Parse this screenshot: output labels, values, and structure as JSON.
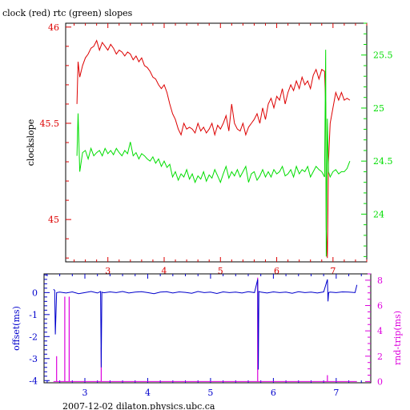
{
  "colors": {
    "red": "#dd0000",
    "green": "#00dd00",
    "blue": "#0000cc",
    "magenta": "#dd00dd",
    "axis": "#000000"
  },
  "chart_data": [
    {
      "type": "line",
      "title": "clock (red) rtc (green) slopes",
      "xlabel": "",
      "ylabel": "clockslope",
      "xlim": [
        2.25,
        7.6
      ],
      "ylim": [
        44.78,
        46.02
      ],
      "y2lim": [
        23.55,
        25.8
      ],
      "x_ticks": [
        "3",
        "4",
        "5",
        "6",
        "7"
      ],
      "y_ticks": [
        "45",
        "45.5",
        "46"
      ],
      "y2_ticks": [
        "24",
        "24.5",
        "25",
        "25.5"
      ],
      "grid": false,
      "series": [
        {
          "axis": "left",
          "color": "red",
          "x": [
            2.45,
            2.47,
            2.5,
            2.55,
            2.6,
            2.65,
            2.7,
            2.75,
            2.8,
            2.85,
            2.9,
            2.95,
            3.0,
            3.05,
            3.1,
            3.15,
            3.2,
            3.25,
            3.3,
            3.35,
            3.4,
            3.45,
            3.5,
            3.55,
            3.6,
            3.65,
            3.7,
            3.75,
            3.8,
            3.85,
            3.9,
            3.95,
            4.0,
            4.05,
            4.1,
            4.15,
            4.2,
            4.25,
            4.3,
            4.35,
            4.4,
            4.45,
            4.5,
            4.55,
            4.6,
            4.65,
            4.7,
            4.75,
            4.8,
            4.85,
            4.9,
            4.95,
            5.0,
            5.05,
            5.1,
            5.15,
            5.2,
            5.25,
            5.3,
            5.35,
            5.4,
            5.45,
            5.5,
            5.55,
            5.6,
            5.65,
            5.7,
            5.75,
            5.8,
            5.85,
            5.9,
            5.95,
            6.0,
            6.05,
            6.1,
            6.15,
            6.2,
            6.25,
            6.3,
            6.35,
            6.4,
            6.45,
            6.5,
            6.55,
            6.6,
            6.65,
            6.7,
            6.75,
            6.8,
            6.85,
            6.87,
            6.88,
            6.9,
            6.92,
            6.95,
            7.0,
            7.05,
            7.1,
            7.15,
            7.2,
            7.25,
            7.3
          ],
          "y": [
            45.6,
            45.82,
            45.74,
            45.8,
            45.84,
            45.86,
            45.89,
            45.9,
            45.93,
            45.88,
            45.92,
            45.9,
            45.88,
            45.91,
            45.89,
            45.86,
            45.88,
            45.87,
            45.85,
            45.87,
            45.86,
            45.83,
            45.85,
            45.82,
            45.84,
            45.8,
            45.79,
            45.77,
            45.74,
            45.73,
            45.7,
            45.68,
            45.7,
            45.66,
            45.6,
            45.55,
            45.52,
            45.47,
            45.44,
            45.5,
            45.47,
            45.48,
            45.47,
            45.45,
            45.5,
            45.46,
            45.48,
            45.45,
            45.47,
            45.5,
            45.44,
            45.49,
            45.47,
            45.5,
            45.54,
            45.46,
            45.6,
            45.5,
            45.47,
            45.46,
            45.5,
            45.44,
            45.48,
            45.5,
            45.52,
            45.55,
            45.5,
            45.58,
            45.52,
            45.6,
            45.63,
            45.58,
            45.64,
            45.62,
            45.68,
            45.6,
            45.66,
            45.7,
            45.67,
            45.72,
            45.68,
            45.74,
            45.7,
            45.72,
            45.68,
            45.75,
            45.78,
            45.73,
            45.78,
            45.77,
            45.6,
            44.95,
            44.8,
            45.3,
            45.5,
            45.58,
            45.66,
            45.62,
            45.66,
            45.62,
            45.63,
            45.62
          ]
        },
        {
          "axis": "right",
          "color": "green",
          "x": [
            2.45,
            2.47,
            2.5,
            2.55,
            2.6,
            2.65,
            2.7,
            2.75,
            2.8,
            2.85,
            2.9,
            2.95,
            3.0,
            3.05,
            3.1,
            3.15,
            3.2,
            3.25,
            3.3,
            3.35,
            3.4,
            3.45,
            3.5,
            3.55,
            3.6,
            3.65,
            3.7,
            3.75,
            3.8,
            3.85,
            3.9,
            3.95,
            4.0,
            4.05,
            4.1,
            4.15,
            4.2,
            4.25,
            4.3,
            4.35,
            4.4,
            4.45,
            4.5,
            4.55,
            4.6,
            4.65,
            4.7,
            4.75,
            4.8,
            4.85,
            4.9,
            4.95,
            5.0,
            5.05,
            5.1,
            5.15,
            5.2,
            5.25,
            5.3,
            5.35,
            5.4,
            5.45,
            5.5,
            5.55,
            5.6,
            5.65,
            5.7,
            5.75,
            5.8,
            5.85,
            5.9,
            5.95,
            6.0,
            6.05,
            6.1,
            6.15,
            6.2,
            6.25,
            6.3,
            6.35,
            6.4,
            6.45,
            6.5,
            6.55,
            6.6,
            6.65,
            6.7,
            6.75,
            6.8,
            6.85,
            6.87,
            6.88,
            6.9,
            6.92,
            6.95,
            7.0,
            7.05,
            7.1,
            7.15,
            7.2,
            7.25,
            7.3
          ],
          "y": [
            24.55,
            24.95,
            24.4,
            24.58,
            24.6,
            24.52,
            24.62,
            24.55,
            24.58,
            24.6,
            24.55,
            24.62,
            24.57,
            24.6,
            24.56,
            24.62,
            24.58,
            24.55,
            24.6,
            24.57,
            24.68,
            24.55,
            24.58,
            24.52,
            24.57,
            24.55,
            24.52,
            24.5,
            24.54,
            24.48,
            24.52,
            24.45,
            24.5,
            24.44,
            24.47,
            24.35,
            24.4,
            24.32,
            24.38,
            24.35,
            24.42,
            24.33,
            24.38,
            24.3,
            24.36,
            24.33,
            24.4,
            24.31,
            24.37,
            24.34,
            24.42,
            24.36,
            24.3,
            24.38,
            24.45,
            24.34,
            24.4,
            24.36,
            24.42,
            24.35,
            24.4,
            24.45,
            24.3,
            24.38,
            24.4,
            24.32,
            24.36,
            24.42,
            24.35,
            24.4,
            24.35,
            24.42,
            24.38,
            24.4,
            24.45,
            24.36,
            24.38,
            24.42,
            24.35,
            24.45,
            24.38,
            24.42,
            24.4,
            24.45,
            24.35,
            24.4,
            24.45,
            24.42,
            24.4,
            24.35,
            25.55,
            23.6,
            24.9,
            24.4,
            24.35,
            24.4,
            24.42,
            24.38,
            24.4,
            24.4,
            24.43,
            24.5
          ]
        }
      ]
    },
    {
      "type": "line",
      "title": "",
      "xlabel": "2007-12-02 dilaton.physics.ubc.ca",
      "ylabel": "offset(ms)",
      "y2label": "rnd-trip(ms)",
      "xlim": [
        2.35,
        7.55
      ],
      "ylim": [
        -4.1,
        0.85
      ],
      "y2lim": [
        -0.1,
        8.5
      ],
      "x_ticks": [
        "3",
        "4",
        "5",
        "6",
        "7"
      ],
      "y_ticks": [
        "-4",
        "-3",
        "-2",
        "-1",
        "0"
      ],
      "y2_ticks": [
        "0",
        "2",
        "4",
        "6",
        "8"
      ],
      "grid": false,
      "series": [
        {
          "axis": "left",
          "color": "blue",
          "x": [
            2.5,
            2.52,
            2.53,
            2.55,
            2.6,
            2.7,
            2.8,
            2.9,
            3.0,
            3.1,
            3.2,
            3.25,
            3.26,
            3.27,
            3.3,
            3.4,
            3.5,
            3.6,
            3.7,
            3.8,
            3.9,
            4.0,
            4.1,
            4.2,
            4.3,
            4.4,
            4.5,
            4.6,
            4.7,
            4.8,
            4.9,
            5.0,
            5.1,
            5.2,
            5.3,
            5.4,
            5.5,
            5.6,
            5.7,
            5.75,
            5.76,
            5.77,
            5.8,
            5.9,
            6.0,
            6.1,
            6.2,
            6.3,
            6.4,
            6.5,
            6.6,
            6.7,
            6.8,
            6.86,
            6.87,
            6.88,
            6.9,
            7.0,
            7.1,
            7.2,
            7.3,
            7.33
          ],
          "y": [
            0.15,
            0.1,
            -1.9,
            0.0,
            0.02,
            -0.02,
            0.03,
            -0.05,
            0.0,
            0.05,
            -0.02,
            0.05,
            -3.4,
            0.02,
            -0.01,
            0.03,
            0.0,
            0.05,
            -0.02,
            0.02,
            0.04,
            0.0,
            -0.05,
            0.02,
            0.04,
            -0.02,
            0.03,
            0.01,
            -0.03,
            0.05,
            0.0,
            0.02,
            -0.04,
            0.03,
            0.0,
            0.02,
            -0.02,
            0.04,
            0.0,
            0.6,
            -3.5,
            0.05,
            0.02,
            -0.02,
            0.03,
            0.0,
            0.02,
            -0.03,
            0.04,
            0.0,
            0.02,
            -0.02,
            0.03,
            0.6,
            -0.4,
            0.0,
            0.02,
            0.0,
            0.03,
            0.02,
            0.0,
            0.35
          ]
        },
        {
          "axis": "right",
          "color": "magenta",
          "spikes": true,
          "x": [
            2.55,
            2.68,
            2.75,
            3.26,
            5.75,
            6.86
          ],
          "y": [
            2.0,
            6.7,
            6.7,
            2.7,
            8.2,
            0.5
          ],
          "baseline": 0
        }
      ]
    }
  ]
}
